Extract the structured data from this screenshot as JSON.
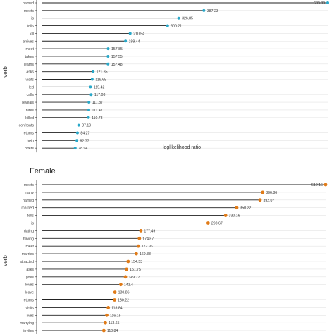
{
  "chart_data": [
    {
      "type": "lollipop",
      "title": "",
      "xlabel": "loglikelihood ratio",
      "ylabel": "verb",
      "point_color": "#29a8c9",
      "categories": [
        "named",
        "meets",
        "is",
        "tells",
        "kill",
        "arrives",
        "meet",
        "takes",
        "learns",
        "asks",
        "visits",
        "led",
        "calls",
        "reveals",
        "hires",
        "killed",
        "confronts",
        "returns",
        "help",
        "offers"
      ],
      "values": [
        683.8,
        387.23,
        326.85,
        300.21,
        210.54,
        199.44,
        157.85,
        157.55,
        157.48,
        121.85,
        119.65,
        115.42,
        117.08,
        111.87,
        111.47,
        110.73,
        87.19,
        84.27,
        82.77,
        78.94
      ],
      "labels": [
        "683.80",
        "387.23",
        "326.85",
        "300.21",
        "210.54",
        "199.44",
        "157.85",
        "157.55",
        "157.48",
        "121.85",
        "119.65",
        "115.42",
        "117.08",
        "111.87",
        "111.47",
        "110.73",
        "87.19",
        "84.27",
        "82.77",
        "78.94"
      ],
      "grid": true
    },
    {
      "type": "lollipop",
      "title": "Female",
      "xlabel": "",
      "ylabel": "verb",
      "point_color": "#e07b18",
      "categories": [
        "meets",
        "marry",
        "named",
        "married",
        "tells",
        "is",
        "dating",
        "having",
        "meet",
        "marries",
        "attracted",
        "asks",
        "goes",
        "loves",
        "leave",
        "returns",
        "visits",
        "lives",
        "marrying",
        "invites"
      ],
      "values": [
        510.15,
        396.86,
        392.07,
        350.22,
        330.16,
        298.67,
        177.49,
        174.87,
        172.96,
        169.38,
        154.53,
        151.75,
        149.77,
        141.4,
        130.86,
        130.22,
        118.84,
        116.15,
        113.65,
        110.84
      ],
      "labels": [
        "510.15",
        "396.86",
        "392.07",
        "350.22",
        "330.16",
        "298.67",
        "177.49",
        "174.87",
        "172.96",
        "169.38",
        "154.53",
        "151.75",
        "149.77",
        "141.4",
        "130.86",
        "130.22",
        "118.84",
        "116.15",
        "113.65",
        "110.84"
      ],
      "grid": true
    }
  ]
}
